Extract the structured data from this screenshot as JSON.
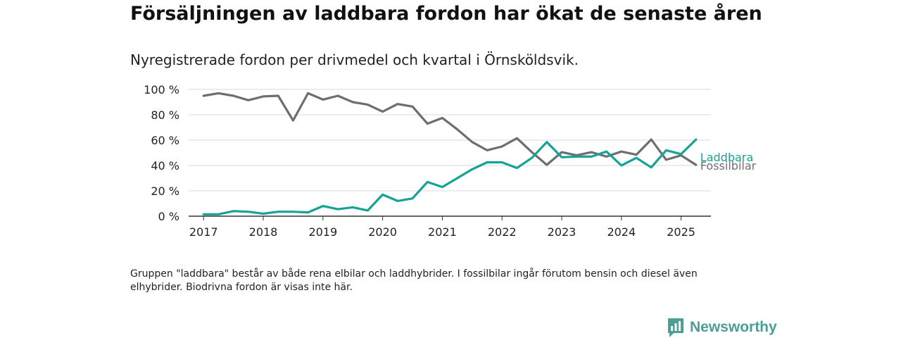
{
  "header": {
    "title": "Försäljningen av laddbara fordon har ökat de senaste åren",
    "subtitle": "Nyregistrerade fordon per drivmedel och kvartal i Örnsköldsvik."
  },
  "footer": {
    "note": "Gruppen \"laddbara\" består av både rena elbilar och laddhybrider. I fossilbilar ingår förutom bensin och diesel även elhybrider. Biodrivna fordon är visas inte här.",
    "brand": "Newsworthy",
    "brand_color": "#4aa095"
  },
  "chart_data": {
    "type": "line",
    "title": "Försäljningen av laddbara fordon har ökat de senaste åren",
    "subtitle": "Nyregistrerade fordon per drivmedel och kvartal i Örnsköldsvik.",
    "xlabel": "",
    "ylabel": "",
    "x_unit": "year",
    "xlim": [
      2016.75,
      2025.5
    ],
    "ylim": [
      0,
      100
    ],
    "x_ticks": [
      2017,
      2018,
      2019,
      2020,
      2021,
      2022,
      2023,
      2024,
      2025
    ],
    "x_tick_labels": [
      "2017",
      "2018",
      "2019",
      "2020",
      "2021",
      "2022",
      "2023",
      "2024",
      "2025"
    ],
    "y_ticks": [
      0,
      20,
      40,
      60,
      80,
      100
    ],
    "y_tick_labels": [
      "0 %",
      "20 %",
      "40 %",
      "60 %",
      "80 %",
      "100 %"
    ],
    "grid": true,
    "legend": "direct labels at line ends",
    "x": [
      2017,
      2017.25,
      2017.5,
      2017.75,
      2018,
      2018.25,
      2018.5,
      2018.75,
      2019,
      2019.25,
      2019.5,
      2019.75,
      2020,
      2020.25,
      2020.5,
      2020.75,
      2021,
      2021.25,
      2021.5,
      2021.75,
      2022,
      2022.25,
      2022.5,
      2022.75,
      2023,
      2023.25,
      2023.5,
      2023.75,
      2024,
      2024.25,
      2024.5,
      2024.75,
      2025,
      2025.25
    ],
    "series": [
      {
        "name": "Laddbara",
        "color": "#14a395",
        "values": [
          1.5,
          1.5,
          4,
          3.5,
          2,
          3.5,
          3.5,
          3,
          8,
          5.5,
          7,
          4.5,
          17,
          12,
          14,
          27,
          23,
          30,
          37,
          42.5,
          42.5,
          38,
          46,
          58.5,
          46.5,
          47,
          47,
          51,
          40,
          46,
          38.5,
          52,
          49,
          60.5
        ]
      },
      {
        "name": "Fossilbilar",
        "color": "#6e6e70",
        "values": [
          95,
          97,
          95,
          91.5,
          94.5,
          95,
          75.5,
          97,
          92,
          95,
          90,
          88,
          82.5,
          88.5,
          86.5,
          73,
          77.5,
          68.5,
          58.5,
          52,
          55,
          61.5,
          50.5,
          40.5,
          50.5,
          48,
          50.5,
          47,
          51,
          48.5,
          60.5,
          44.5,
          48,
          40.5
        ]
      }
    ]
  }
}
